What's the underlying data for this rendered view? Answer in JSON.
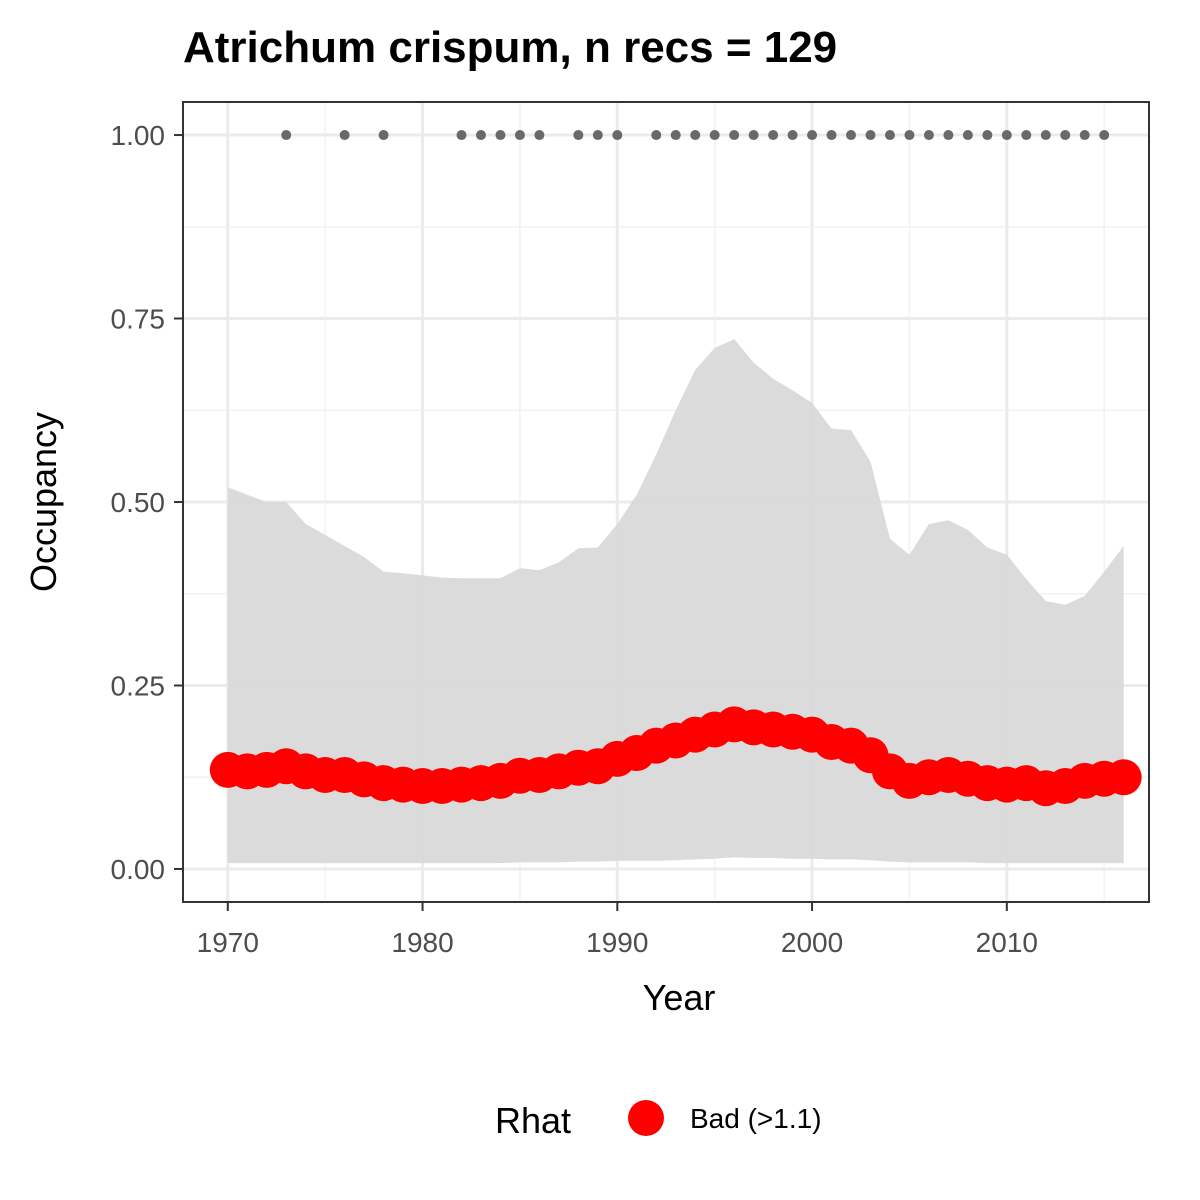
{
  "chart_data": {
    "type": "line",
    "title": "Atrichum crispum, n recs = 129",
    "xlabel": "Year",
    "ylabel": "Occupancy",
    "xlim": [
      1967.7,
      1917.3
    ],
    "ylim": [
      -0.045,
      1.045
    ],
    "x_ticks": [
      1970,
      1980,
      1990,
      2000,
      2010
    ],
    "x_tick_labels": [
      "1970",
      "1980",
      "1990",
      "2000",
      "2010"
    ],
    "y_ticks": [
      0,
      0.25,
      0.5,
      0.75,
      1.0
    ],
    "y_tick_labels": [
      "0.00",
      "0.25",
      "0.50",
      "0.75",
      "1.00"
    ],
    "grid": true,
    "years": [
      1970,
      1971,
      1972,
      1973,
      1974,
      1975,
      1976,
      1977,
      1978,
      1979,
      1980,
      1981,
      1982,
      1983,
      1984,
      1985,
      1986,
      1987,
      1988,
      1989,
      1990,
      1991,
      1992,
      1993,
      1994,
      1995,
      1996,
      1997,
      1998,
      1999,
      2000,
      2001,
      2002,
      2003,
      2004,
      2005,
      2006,
      2007,
      2008,
      2009,
      2010,
      2011,
      2012,
      2013,
      2014,
      2015,
      2016
    ],
    "occupancy": [
      0.135,
      0.133,
      0.135,
      0.14,
      0.133,
      0.128,
      0.128,
      0.122,
      0.117,
      0.115,
      0.113,
      0.113,
      0.115,
      0.117,
      0.12,
      0.127,
      0.128,
      0.133,
      0.138,
      0.14,
      0.15,
      0.158,
      0.168,
      0.175,
      0.183,
      0.19,
      0.197,
      0.193,
      0.19,
      0.187,
      0.183,
      0.173,
      0.168,
      0.155,
      0.133,
      0.12,
      0.125,
      0.128,
      0.123,
      0.117,
      0.115,
      0.117,
      0.11,
      0.113,
      0.12,
      0.123,
      0.125
    ],
    "upper_ci": [
      0.52,
      0.51,
      0.5,
      0.5,
      0.47,
      0.455,
      0.44,
      0.425,
      0.405,
      0.403,
      0.4,
      0.397,
      0.396,
      0.396,
      0.396,
      0.41,
      0.407,
      0.418,
      0.437,
      0.438,
      0.47,
      0.51,
      0.565,
      0.625,
      0.68,
      0.71,
      0.722,
      0.69,
      0.668,
      0.652,
      0.635,
      0.6,
      0.598,
      0.555,
      0.45,
      0.428,
      0.47,
      0.475,
      0.462,
      0.438,
      0.428,
      0.395,
      0.365,
      0.36,
      0.372,
      0.405,
      0.44
    ],
    "lower_ci": [
      0.008,
      0.008,
      0.008,
      0.008,
      0.008,
      0.008,
      0.008,
      0.008,
      0.008,
      0.008,
      0.008,
      0.008,
      0.008,
      0.008,
      0.008,
      0.009,
      0.009,
      0.009,
      0.01,
      0.01,
      0.011,
      0.011,
      0.011,
      0.012,
      0.013,
      0.014,
      0.016,
      0.015,
      0.015,
      0.014,
      0.014,
      0.013,
      0.013,
      0.012,
      0.01,
      0.009,
      0.009,
      0.009,
      0.009,
      0.008,
      0.008,
      0.008,
      0.008,
      0.008,
      0.008,
      0.008,
      0.008
    ],
    "record_years": [
      1973,
      1976,
      1978,
      1982,
      1983,
      1984,
      1985,
      1986,
      1988,
      1989,
      1990,
      1992,
      1993,
      1994,
      1995,
      1996,
      1997,
      1998,
      1999,
      2000,
      2001,
      2002,
      2003,
      2004,
      2005,
      2006,
      2007,
      2008,
      2009,
      2010,
      2011,
      2012,
      2013,
      2014,
      2015
    ],
    "record_value": 1.0,
    "legend": {
      "title": "Rhat",
      "entries": [
        {
          "label": "Bad (>1.1)",
          "color": "#ff0000"
        }
      ],
      "position": "bottom"
    },
    "colors": {
      "ribbon": "#d9d9d9",
      "line": "#ff0000",
      "records": "#696969",
      "grid": "#ebebeb",
      "panel_border": "#333333",
      "tick_label": "#4d4d4d"
    }
  }
}
